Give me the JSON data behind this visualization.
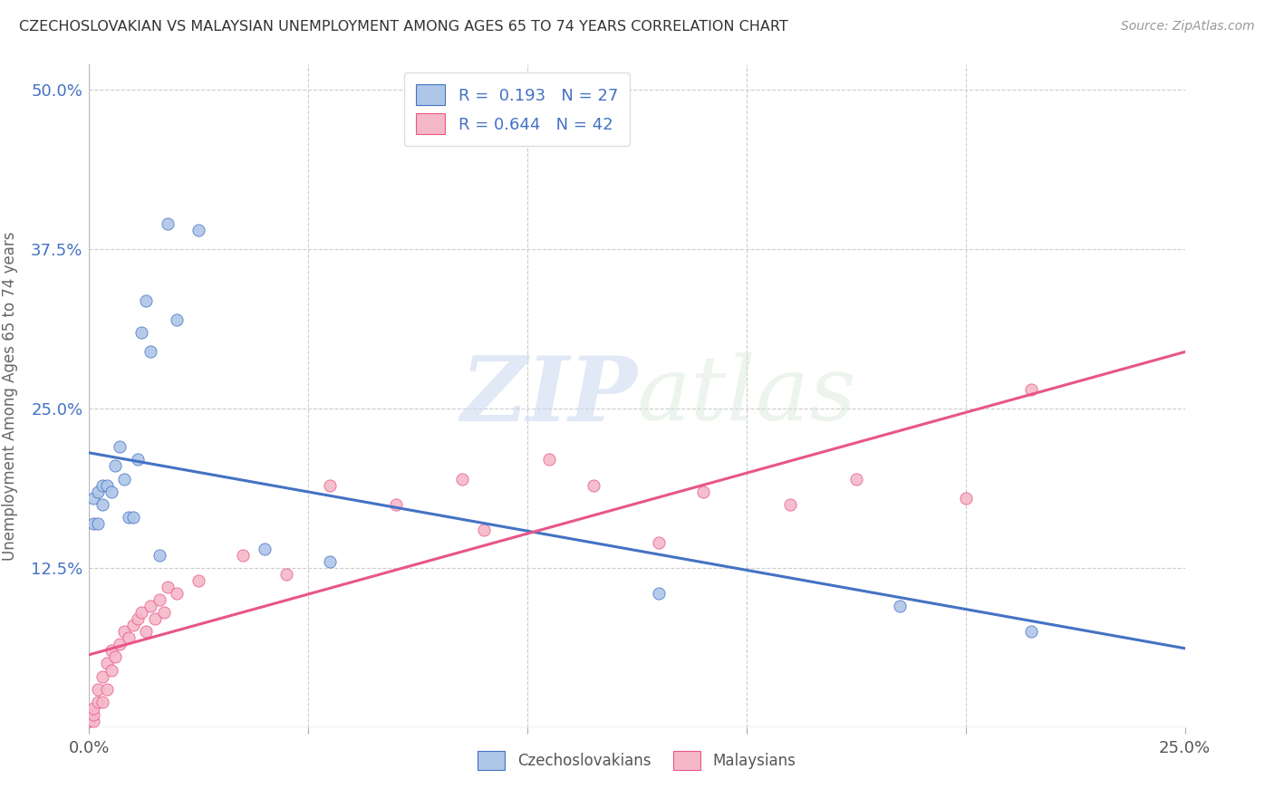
{
  "title": "CZECHOSLOVAKIAN VS MALAYSIAN UNEMPLOYMENT AMONG AGES 65 TO 74 YEARS CORRELATION CHART",
  "source": "Source: ZipAtlas.com",
  "ylabel": "Unemployment Among Ages 65 to 74 years",
  "xlim": [
    0.0,
    0.25
  ],
  "ylim": [
    0.0,
    0.52
  ],
  "czech_color": "#aec6e8",
  "malaysian_color": "#f5b8c8",
  "czech_line_color": "#4472c4",
  "malaysian_line_color": "#e8558a",
  "czech_R": 0.193,
  "czech_N": 27,
  "malaysian_R": 0.644,
  "malaysian_N": 42,
  "czech_scatter_x": [
    0.0,
    0.001,
    0.001,
    0.002,
    0.002,
    0.003,
    0.003,
    0.004,
    0.005,
    0.006,
    0.007,
    0.008,
    0.009,
    0.01,
    0.011,
    0.012,
    0.013,
    0.014,
    0.016,
    0.018,
    0.02,
    0.025,
    0.04,
    0.055,
    0.13,
    0.185,
    0.215
  ],
  "czech_scatter_y": [
    0.005,
    0.16,
    0.18,
    0.16,
    0.185,
    0.175,
    0.19,
    0.19,
    0.185,
    0.205,
    0.22,
    0.195,
    0.165,
    0.165,
    0.21,
    0.31,
    0.335,
    0.295,
    0.135,
    0.395,
    0.32,
    0.39,
    0.14,
    0.13,
    0.105,
    0.095,
    0.075
  ],
  "malaysian_scatter_x": [
    0.0,
    0.0,
    0.001,
    0.001,
    0.001,
    0.002,
    0.002,
    0.003,
    0.003,
    0.004,
    0.004,
    0.005,
    0.005,
    0.006,
    0.007,
    0.008,
    0.009,
    0.01,
    0.011,
    0.012,
    0.013,
    0.014,
    0.015,
    0.016,
    0.017,
    0.018,
    0.02,
    0.025,
    0.035,
    0.045,
    0.055,
    0.07,
    0.085,
    0.09,
    0.105,
    0.115,
    0.13,
    0.14,
    0.16,
    0.175,
    0.2,
    0.215
  ],
  "malaysian_scatter_y": [
    0.005,
    0.01,
    0.005,
    0.01,
    0.015,
    0.02,
    0.03,
    0.02,
    0.04,
    0.03,
    0.05,
    0.045,
    0.06,
    0.055,
    0.065,
    0.075,
    0.07,
    0.08,
    0.085,
    0.09,
    0.075,
    0.095,
    0.085,
    0.1,
    0.09,
    0.11,
    0.105,
    0.115,
    0.135,
    0.12,
    0.19,
    0.175,
    0.195,
    0.155,
    0.21,
    0.19,
    0.145,
    0.185,
    0.175,
    0.195,
    0.18,
    0.265
  ],
  "background_color": "#ffffff",
  "grid_color": "#cccccc",
  "watermark_zip": "ZIP",
  "watermark_atlas": "atlas",
  "legend_R_czech": "R =  0.193",
  "legend_N_czech": "N = 27",
  "legend_R_malay": "R = 0.644",
  "legend_N_malay": "N = 42",
  "bottom_legend_czech": "Czechoslovakians",
  "bottom_legend_malay": "Malaysians"
}
